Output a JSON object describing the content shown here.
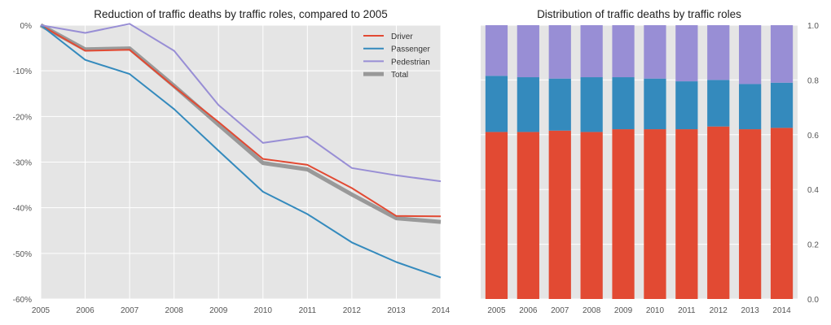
{
  "chart_data": [
    {
      "type": "line",
      "title": "Reduction of traffic deaths by traffic roles, compared to 2005",
      "x": [
        "2005",
        "2006",
        "2007",
        "2008",
        "2009",
        "2010",
        "2011",
        "2012",
        "2013",
        "2014"
      ],
      "ylim": [
        -60,
        0
      ],
      "yticks": [
        0,
        -10,
        -20,
        -30,
        -40,
        -50,
        -60
      ],
      "ytick_labels": [
        "0%",
        "-10%",
        "-20%",
        "-30%",
        "-40%",
        "-50%",
        "-60%"
      ],
      "grid": true,
      "legend_position": "top-right",
      "series": [
        {
          "name": "Driver",
          "color": "#E24A33",
          "values": [
            0,
            -5.6,
            -5.4,
            -13.5,
            -21.2,
            -29.3,
            -30.6,
            -35.7,
            -41.8,
            -41.9
          ]
        },
        {
          "name": "Passenger",
          "color": "#348ABD",
          "values": [
            0,
            -7.6,
            -10.7,
            -18.4,
            -27.5,
            -36.5,
            -41.4,
            -47.6,
            -51.9,
            -55.3
          ]
        },
        {
          "name": "Pedestrian",
          "color": "#988ED5",
          "values": [
            0,
            -1.7,
            0.3,
            -5.6,
            -17.5,
            -25.8,
            -24.4,
            -31.3,
            -32.9,
            -34.2
          ]
        },
        {
          "name": "Total",
          "color": "#999999",
          "values": [
            0,
            -5.3,
            -5.1,
            -13.3,
            -21.8,
            -30.2,
            -31.6,
            -37.1,
            -42.3,
            -43.1
          ]
        }
      ]
    },
    {
      "type": "bar",
      "stacked": true,
      "title": "Distribution of traffic deaths by traffic roles",
      "categories": [
        "2005",
        "2006",
        "2007",
        "2008",
        "2009",
        "2010",
        "2011",
        "2012",
        "2013",
        "2014"
      ],
      "ylim": [
        0,
        1.0
      ],
      "yticks": [
        0.0,
        0.2,
        0.4,
        0.6,
        0.8,
        1.0
      ],
      "ytick_labels": [
        "0.0",
        "0.2",
        "0.4",
        "0.6",
        "0.8",
        "1.0"
      ],
      "y_axis_side": "right",
      "grid": true,
      "series": [
        {
          "role": "Driver",
          "color": "#E24A33",
          "values": [
            0.61,
            0.61,
            0.615,
            0.61,
            0.62,
            0.62,
            0.62,
            0.63,
            0.62,
            0.625
          ]
        },
        {
          "role": "Passenger",
          "color": "#348ABD",
          "values": [
            0.205,
            0.2,
            0.19,
            0.2,
            0.19,
            0.185,
            0.175,
            0.17,
            0.165,
            0.165
          ]
        },
        {
          "role": "Pedestrian",
          "color": "#988ED5",
          "values": [
            0.185,
            0.19,
            0.195,
            0.19,
            0.19,
            0.195,
            0.205,
            0.2,
            0.215,
            0.21
          ]
        }
      ]
    }
  ]
}
